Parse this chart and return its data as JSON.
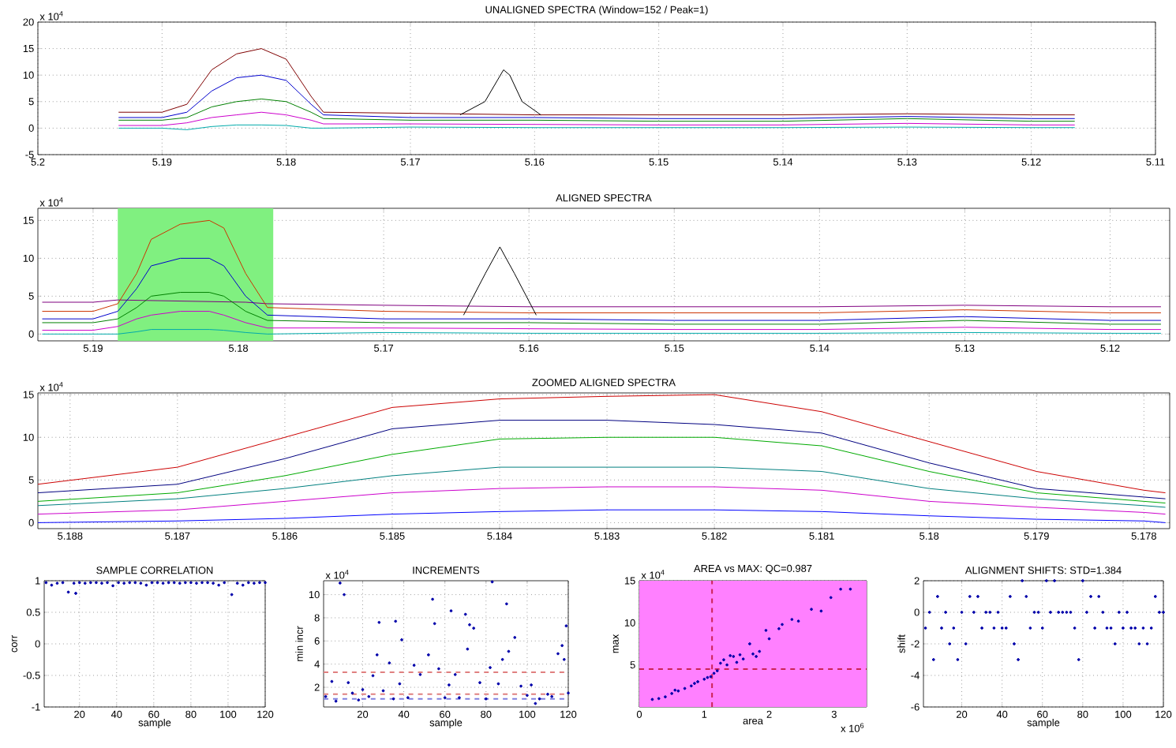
{
  "chart_data": [
    {
      "type": "line",
      "title": "UNALIGNED SPECTRA (Window=152 / Peak=1)",
      "annotations": [
        "x 10$^{4}$"
      ],
      "xlim": [
        5.2,
        5.11
      ],
      "ylim": [
        -5,
        20
      ],
      "xticks": [
        5.2,
        5.19,
        5.18,
        5.17,
        5.16,
        5.15,
        5.14,
        5.13,
        5.12,
        5.11
      ],
      "yticks": [
        -5,
        0,
        5,
        10,
        15,
        20
      ],
      "grid": true,
      "marker": "none",
      "series": [
        {
          "color": "#800000",
          "x": [
            5.1935,
            5.19,
            5.188,
            5.186,
            5.184,
            5.182,
            5.18,
            5.178,
            5.177,
            5.17,
            5.16,
            5.15,
            5.14,
            5.13,
            5.12,
            5.1165
          ],
          "values": [
            3,
            3,
            4.5,
            11,
            14,
            15,
            13,
            6,
            3,
            2.8,
            2.5,
            2.5,
            2.5,
            2.7,
            2.5,
            2.5
          ]
        },
        {
          "color": "#0000cc",
          "x": [
            5.1935,
            5.19,
            5.188,
            5.186,
            5.184,
            5.182,
            5.18,
            5.178,
            5.177,
            5.17,
            5.16,
            5.15,
            5.14,
            5.13,
            5.12,
            5.1165
          ],
          "values": [
            2,
            2,
            3,
            7,
            9.5,
            10,
            9,
            4.5,
            2.5,
            2,
            2,
            1.8,
            1.8,
            2.2,
            1.8,
            1.8
          ]
        },
        {
          "color": "#008000",
          "x": [
            5.1935,
            5.19,
            5.188,
            5.186,
            5.184,
            5.182,
            5.18,
            5.178,
            5.177,
            5.17,
            5.16,
            5.15,
            5.14,
            5.13,
            5.12,
            5.1165
          ],
          "values": [
            1.5,
            1.5,
            2,
            4,
            5,
            5.5,
            5,
            3,
            1.8,
            1.5,
            1.5,
            1.3,
            1.3,
            1.8,
            1.3,
            1.3
          ]
        },
        {
          "color": "#cc00cc",
          "x": [
            5.1935,
            5.19,
            5.188,
            5.186,
            5.184,
            5.182,
            5.18,
            5.178,
            5.177,
            5.17,
            5.16,
            5.15,
            5.14,
            5.13,
            5.12,
            5.1165
          ],
          "values": [
            0.5,
            0.5,
            1,
            2,
            2.5,
            3,
            2.5,
            1.5,
            0.8,
            0.8,
            0.7,
            0.6,
            0.6,
            0.9,
            0.6,
            0.6
          ]
        },
        {
          "color": "#00aaaa",
          "x": [
            5.1935,
            5.19,
            5.188,
            5.186,
            5.184,
            5.182,
            5.18,
            5.178,
            5.177,
            5.17,
            5.16,
            5.15,
            5.14,
            5.13,
            5.12,
            5.1165
          ],
          "values": [
            0,
            0,
            -0.3,
            0.3,
            0.6,
            0.6,
            0.5,
            0,
            0,
            0.2,
            0.1,
            0.1,
            0.1,
            0.2,
            0.1,
            0.1
          ]
        },
        {
          "color": "#000000",
          "x": [
            5.166,
            5.164,
            5.163,
            5.1625,
            5.162,
            5.161,
            5.1595
          ],
          "values": [
            2.5,
            5,
            9,
            11,
            10,
            5,
            2.5
          ]
        }
      ]
    },
    {
      "type": "line",
      "title": "ALIGNED SPECTRA",
      "annotations": [
        "x 10$^{4}$"
      ],
      "xlim": [
        5.1938,
        5.1159
      ],
      "ylim": [
        -0.9,
        16.6
      ],
      "xticks": [
        5.19,
        5.18,
        5.17,
        5.16,
        5.15,
        5.14,
        5.13,
        5.12
      ],
      "yticks": [
        0,
        5,
        10,
        15
      ],
      "grid": true,
      "marker": "none",
      "bands": [
        {
          "axis": "x",
          "from": 5.1883,
          "to": 5.1776,
          "color": "#80f080"
        }
      ],
      "series": [
        {
          "color": "#800080",
          "x": [
            5.1935,
            5.19,
            5.1883,
            5.1795,
            5.178,
            5.17,
            5.16,
            5.15,
            5.14,
            5.13,
            5.12,
            5.1165
          ],
          "values": [
            4.2,
            4.2,
            4.5,
            4.2,
            4,
            3.8,
            3.6,
            3.6,
            3.6,
            3.8,
            3.6,
            3.6
          ]
        },
        {
          "color": "#cc3300",
          "x": [
            5.1935,
            5.19,
            5.1883,
            5.187,
            5.186,
            5.184,
            5.182,
            5.181,
            5.1795,
            5.178,
            5.17,
            5.16,
            5.15,
            5.14,
            5.13,
            5.12,
            5.1165
          ],
          "values": [
            3,
            3,
            4,
            8,
            12.5,
            14.5,
            15,
            14,
            8,
            3.5,
            3,
            2.8,
            2.8,
            2.8,
            3.2,
            2.8,
            2.8
          ]
        },
        {
          "color": "#0000cc",
          "x": [
            5.1935,
            5.19,
            5.1883,
            5.187,
            5.186,
            5.184,
            5.182,
            5.181,
            5.1795,
            5.178,
            5.17,
            5.16,
            5.15,
            5.14,
            5.13,
            5.12,
            5.1165
          ],
          "values": [
            2,
            2,
            3,
            6,
            9,
            10,
            10,
            9,
            5,
            2.5,
            2,
            2,
            1.8,
            1.8,
            2.3,
            1.8,
            1.8
          ]
        },
        {
          "color": "#008000",
          "x": [
            5.1935,
            5.19,
            5.1883,
            5.187,
            5.186,
            5.184,
            5.182,
            5.181,
            5.1795,
            5.178,
            5.17,
            5.16,
            5.15,
            5.14,
            5.13,
            5.12,
            5.1165
          ],
          "values": [
            1.5,
            1.5,
            2,
            3.5,
            5,
            5.5,
            5.5,
            5,
            3,
            1.8,
            1.5,
            1.5,
            1.3,
            1.3,
            1.8,
            1.3,
            1.3
          ]
        },
        {
          "color": "#cc00cc",
          "x": [
            5.1935,
            5.19,
            5.1883,
            5.187,
            5.186,
            5.184,
            5.182,
            5.181,
            5.1795,
            5.178,
            5.17,
            5.16,
            5.15,
            5.14,
            5.13,
            5.12,
            5.1165
          ],
          "values": [
            0.5,
            0.5,
            1,
            2,
            2.5,
            3,
            3,
            2.5,
            1.5,
            0.8,
            0.8,
            0.7,
            0.6,
            0.6,
            0.9,
            0.6,
            0.6
          ]
        },
        {
          "color": "#00aaaa",
          "x": [
            5.1935,
            5.19,
            5.1883,
            5.187,
            5.186,
            5.184,
            5.182,
            5.181,
            5.1795,
            5.178,
            5.17,
            5.16,
            5.15,
            5.14,
            5.13,
            5.12,
            5.1165
          ],
          "values": [
            0,
            0,
            0,
            0.3,
            0.6,
            0.6,
            0.6,
            0.5,
            0.2,
            0,
            0.2,
            0.1,
            0.1,
            0.1,
            0.2,
            0.1,
            0.1
          ]
        },
        {
          "color": "#000000",
          "x": [
            5.1645,
            5.163,
            5.162,
            5.161,
            5.1595
          ],
          "values": [
            2.5,
            8,
            11.5,
            8,
            2.5
          ]
        }
      ]
    },
    {
      "type": "line",
      "title": "ZOOMED ALIGNED SPECTRA",
      "annotations": [
        "x 10$^{4}$"
      ],
      "xlim": [
        5.1883,
        5.17776
      ],
      "ylim": [
        -0.7,
        15.2
      ],
      "xticks": [
        5.188,
        5.187,
        5.186,
        5.185,
        5.184,
        5.183,
        5.182,
        5.181,
        5.18,
        5.179,
        5.178
      ],
      "yticks": [
        0,
        5,
        10,
        15
      ],
      "grid": true,
      "marker": "none",
      "series": [
        {
          "color": "#cc0000",
          "x": [
            5.1883,
            5.187,
            5.186,
            5.185,
            5.184,
            5.183,
            5.182,
            5.181,
            5.18,
            5.179,
            5.178,
            5.1778
          ],
          "values": [
            4.5,
            6.5,
            10,
            13.5,
            14.5,
            14.8,
            15,
            13,
            9.5,
            6,
            3.8,
            3.5
          ]
        },
        {
          "color": "#000080",
          "x": [
            5.1883,
            5.187,
            5.186,
            5.185,
            5.184,
            5.183,
            5.182,
            5.181,
            5.18,
            5.179,
            5.178,
            5.1778
          ],
          "values": [
            3.5,
            4.5,
            7.5,
            11,
            12,
            12,
            11.5,
            10.5,
            7,
            4,
            3,
            2.8
          ]
        },
        {
          "color": "#00aa00",
          "x": [
            5.1883,
            5.187,
            5.186,
            5.185,
            5.184,
            5.183,
            5.182,
            5.181,
            5.18,
            5.179,
            5.178,
            5.1778
          ],
          "values": [
            2.5,
            3.5,
            5.5,
            8,
            9.8,
            10,
            10,
            9,
            6,
            3.5,
            2.5,
            2.3
          ]
        },
        {
          "color": "#008080",
          "x": [
            5.1883,
            5.187,
            5.186,
            5.185,
            5.184,
            5.183,
            5.182,
            5.181,
            5.18,
            5.179,
            5.178,
            5.1778
          ],
          "values": [
            2,
            2.8,
            4,
            5.5,
            6.5,
            6.5,
            6.5,
            6,
            4,
            2.8,
            2,
            1.8
          ]
        },
        {
          "color": "#cc00cc",
          "x": [
            5.1883,
            5.187,
            5.186,
            5.185,
            5.184,
            5.183,
            5.182,
            5.181,
            5.18,
            5.179,
            5.178,
            5.1778
          ],
          "values": [
            1,
            1.5,
            2.5,
            3.5,
            4,
            4.2,
            4.2,
            3.8,
            2.5,
            1.8,
            1.2,
            1
          ]
        },
        {
          "color": "#0000ff",
          "x": [
            5.1883,
            5.187,
            5.186,
            5.185,
            5.184,
            5.183,
            5.182,
            5.181,
            5.18,
            5.179,
            5.178,
            5.1778
          ],
          "values": [
            0,
            0.2,
            0.5,
            1,
            1.3,
            1.5,
            1.5,
            1.3,
            0.8,
            0.4,
            0.2,
            0
          ]
        }
      ]
    },
    {
      "type": "scatter",
      "title": "SAMPLE CORRELATION",
      "xlabel": "sample",
      "ylabel": "corr",
      "xlim": [
        1,
        120
      ],
      "ylim": [
        -1,
        1
      ],
      "xticks": [
        20,
        40,
        60,
        80,
        100,
        120
      ],
      "yticks": [
        -1,
        -0.5,
        0,
        0.5,
        1
      ],
      "grid": true,
      "marker": "circle",
      "series": [
        {
          "color": "#0000aa",
          "x": [
            2,
            5,
            8,
            11,
            14,
            17,
            18,
            20,
            23,
            26,
            29,
            32,
            35,
            38,
            41,
            44,
            47,
            50,
            53,
            56,
            59,
            62,
            65,
            68,
            71,
            74,
            77,
            80,
            83,
            86,
            89,
            92,
            95,
            98,
            102,
            105,
            108,
            111,
            114,
            117,
            120
          ],
          "values": [
            0.97,
            0.93,
            0.96,
            0.97,
            0.82,
            0.96,
            0.8,
            0.97,
            0.96,
            0.97,
            0.97,
            0.96,
            0.97,
            0.92,
            0.97,
            0.96,
            0.97,
            0.97,
            0.96,
            0.93,
            0.97,
            0.97,
            0.96,
            0.97,
            0.97,
            0.96,
            0.97,
            0.97,
            0.96,
            0.97,
            0.97,
            0.96,
            0.93,
            0.97,
            0.78,
            0.96,
            0.93,
            0.97,
            0.96,
            0.97,
            0.97
          ]
        }
      ]
    },
    {
      "type": "scatter",
      "title": "INCREMENTS",
      "xlabel": "sample",
      "ylabel": "min incr",
      "annotations": [
        "x 10$^{4}$"
      ],
      "xlim": [
        1,
        120
      ],
      "ylim": [
        0.3,
        11.2
      ],
      "xticks": [
        20,
        40,
        60,
        80,
        100,
        120
      ],
      "yticks": [
        2,
        4,
        6,
        8,
        10
      ],
      "grid": true,
      "marker": "circle",
      "ref_lines": [
        {
          "axis": "y",
          "value": 3.3,
          "color": "#e08080",
          "line_style": "dashed"
        },
        {
          "axis": "y",
          "value": 1.4,
          "color": "#e08080",
          "line_style": "dashed"
        },
        {
          "axis": "y",
          "value": 1.0,
          "color": "#8080e0",
          "line_style": "dashed"
        }
      ],
      "series": [
        {
          "color": "#0000aa",
          "x": [
            2,
            5,
            7,
            9,
            11,
            13,
            15,
            18,
            20,
            23,
            25,
            27,
            28,
            30,
            33,
            35,
            36,
            38,
            39,
            42,
            45,
            48,
            52,
            54,
            55,
            57,
            60,
            62,
            63,
            65,
            67,
            70,
            71,
            72,
            74,
            77,
            80,
            82,
            83,
            86,
            88,
            90,
            91,
            94,
            97,
            100,
            102,
            104,
            106,
            110,
            112,
            115,
            117,
            118,
            119,
            120
          ],
          "values": [
            1.2,
            2.5,
            0.8,
            11,
            10,
            2.4,
            1.5,
            0.9,
            1.8,
            1.2,
            3.0,
            4.8,
            7.6,
            1.7,
            4.1,
            1.0,
            7.7,
            2.3,
            6.1,
            1.1,
            3.9,
            3.1,
            4.8,
            9.6,
            7.5,
            3.6,
            1.1,
            2.2,
            8.6,
            3.1,
            1.1,
            8.3,
            5.3,
            7.4,
            7.1,
            2.4,
            1.0,
            3.7,
            11.1,
            2.3,
            4.4,
            9.2,
            5.1,
            6.3,
            2.1,
            1.3,
            2.2,
            0.6,
            1.0,
            1.4,
            1.2,
            4.9,
            5.6,
            4.4,
            7.3,
            1.5
          ]
        }
      ]
    },
    {
      "type": "scatter",
      "title": "AREA vs MAX: QC=0.987",
      "xlabel": "area",
      "ylabel": "max",
      "annotations": [
        "x 10$^{4}$",
        "x 10$^{6}$"
      ],
      "xlim": [
        0,
        3.5
      ],
      "ylim": [
        0,
        15
      ],
      "xticks": [
        0,
        1,
        2,
        3
      ],
      "yticks": [
        5,
        10,
        15
      ],
      "grid": true,
      "marker": "circle",
      "bands": [
        {
          "axis": "x",
          "from": 0,
          "to": 3.5,
          "color": "#ff80ff"
        }
      ],
      "ref_lines": [
        {
          "axis": "x",
          "value": 1.12,
          "color": "#cc2255",
          "line_style": "dashed"
        },
        {
          "axis": "y",
          "value": 4.5,
          "color": "#cc2255",
          "line_style": "dashed"
        }
      ],
      "series": [
        {
          "color": "#0000aa",
          "x": [
            0.2,
            0.3,
            0.4,
            0.5,
            0.55,
            0.6,
            0.7,
            0.8,
            0.85,
            0.9,
            1.0,
            1.05,
            1.1,
            1.15,
            1.2,
            1.25,
            1.3,
            1.35,
            1.4,
            1.45,
            1.5,
            1.55,
            1.6,
            1.7,
            1.75,
            1.8,
            1.85,
            1.95,
            2.0,
            2.15,
            2.2,
            2.35,
            2.45,
            2.65,
            2.8,
            2.95,
            3.1,
            3.25
          ],
          "values": [
            0.9,
            1.0,
            1.2,
            1.6,
            2.0,
            1.9,
            2.2,
            2.5,
            2.8,
            3.0,
            3.3,
            3.5,
            3.6,
            4.0,
            4.3,
            5.2,
            5.6,
            5.0,
            6.1,
            6.0,
            5.3,
            6.2,
            5.7,
            7.5,
            6.3,
            6.0,
            6.6,
            9.1,
            8.1,
            9.3,
            9.8,
            10.4,
            10.2,
            11.6,
            11.4,
            13.0,
            14.0,
            14.0
          ]
        }
      ]
    },
    {
      "type": "scatter",
      "title": "ALIGNMENT SHIFTS: STD=1.384",
      "xlabel": "sample",
      "ylabel": "shift",
      "xlim": [
        1,
        120
      ],
      "ylim": [
        -6,
        2
      ],
      "xticks": [
        20,
        40,
        60,
        80,
        100,
        120
      ],
      "yticks": [
        -6,
        -4,
        -2,
        0,
        2
      ],
      "grid": true,
      "marker": "circle",
      "series": [
        {
          "color": "#0000aa",
          "x": [
            2,
            4,
            6,
            8,
            10,
            12,
            14,
            16,
            18,
            20,
            22,
            24,
            26,
            28,
            30,
            32,
            34,
            36,
            38,
            40,
            42,
            44,
            46,
            48,
            50,
            52,
            54,
            56,
            58,
            60,
            62,
            64,
            66,
            68,
            70,
            72,
            74,
            76,
            78,
            80,
            82,
            84,
            86,
            88,
            90,
            92,
            94,
            96,
            98,
            100,
            102,
            104,
            106,
            108,
            110,
            112,
            114,
            116,
            118,
            120
          ],
          "values": [
            -1,
            0,
            -3,
            1,
            -1,
            0,
            -2,
            -1,
            -3,
            0,
            -2,
            1,
            0,
            1,
            -1,
            0,
            0,
            -1,
            0,
            -1,
            -1,
            1,
            -2,
            -3,
            2,
            1,
            -1,
            0,
            0,
            -1,
            2,
            0,
            2,
            0,
            0,
            0,
            0,
            -1,
            -3,
            2,
            0,
            1,
            -1,
            1,
            0,
            -1,
            -1,
            -2,
            0,
            -1,
            0,
            -1,
            -1,
            -2,
            -1,
            -2,
            -1,
            1,
            0,
            0
          ]
        }
      ]
    }
  ]
}
